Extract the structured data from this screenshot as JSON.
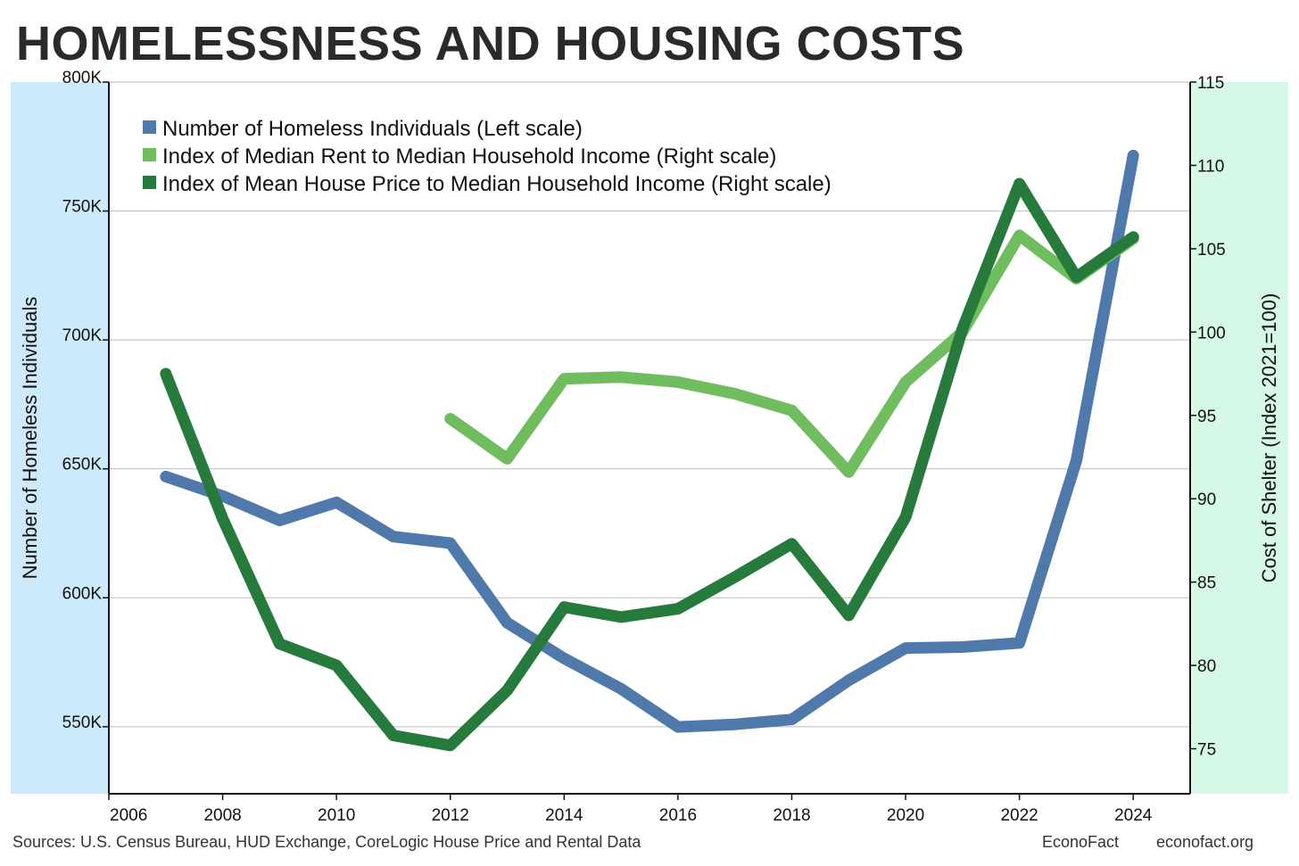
{
  "title": "HOMELESSNESS AND HOUSING COSTS",
  "footer": {
    "sources": "Sources: U.S. Census Bureau, HUD Exchange, CoreLogic House Price and Rental Data",
    "brand": "EconoFact",
    "url": "econofact.org"
  },
  "colors": {
    "homeless": "#4f79ab",
    "rent": "#70bd60",
    "house": "#267a3b",
    "left_panel": "#cdeafd",
    "right_panel": "#d6f8e6",
    "grid": "#bbbbbb"
  },
  "chart_data": {
    "type": "line",
    "title": "HOMELESSNESS AND HOUSING COSTS",
    "ylabel_left": "Number of Homeless Individuals",
    "ylabel_right": "Cost of Shelter (Index 2021=100)",
    "xlim": [
      2006,
      2025
    ],
    "xticks": [
      2006,
      2008,
      2010,
      2012,
      2014,
      2016,
      2018,
      2020,
      2022,
      2024
    ],
    "xtick_labels": [
      "2006",
      "2008",
      "2010",
      "2012",
      "2014",
      "2016",
      "2018",
      "2020",
      "2022",
      "2024"
    ],
    "ylim_left": [
      524000,
      800000
    ],
    "yticks_left": [
      550000,
      600000,
      650000,
      700000,
      750000,
      800000
    ],
    "ytick_labels_left": [
      "550K",
      "600K",
      "650K",
      "700K",
      "750K",
      "800K"
    ],
    "ylim_right": [
      72.3,
      115
    ],
    "yticks_right": [
      75,
      80,
      85,
      90,
      95,
      100,
      105,
      110,
      115
    ],
    "ytick_labels_right": [
      "75",
      "80",
      "85",
      "90",
      "95",
      "100",
      "105",
      "110",
      "115"
    ],
    "grid": true,
    "legend_position": "top-left",
    "series": [
      {
        "name": "Number of Homeless Individuals (Left scale)",
        "axis": "left",
        "color_key": "homeless",
        "x": [
          2007,
          2008,
          2009,
          2010,
          2011,
          2012,
          2013,
          2014,
          2015,
          2016,
          2017,
          2018,
          2019,
          2020,
          2021,
          2022,
          2023,
          2024
        ],
        "values": [
          647000,
          639500,
          630000,
          637000,
          623700,
          621200,
          590300,
          576500,
          564700,
          549900,
          550900,
          552800,
          568000,
          580500,
          580900,
          582500,
          653100,
          771500
        ]
      },
      {
        "name": "Index of Median Rent to Median Household Income (Right scale)",
        "axis": "right",
        "color_key": "rent",
        "x": [
          2012,
          2013,
          2014,
          2015,
          2016,
          2017,
          2018,
          2019,
          2020,
          2021,
          2022,
          2023,
          2024
        ],
        "values": [
          94.8,
          92.4,
          97.2,
          97.3,
          97.0,
          96.3,
          95.3,
          91.6,
          97.0,
          100.0,
          105.8,
          103.2,
          105.6
        ]
      },
      {
        "name": "Index of Mean House Price to Median Household Income (Right scale)",
        "axis": "right",
        "color_key": "house",
        "x": [
          2007,
          2008,
          2009,
          2010,
          2011,
          2012,
          2013,
          2014,
          2015,
          2016,
          2017,
          2018,
          2019,
          2020,
          2021,
          2022,
          2023,
          2024
        ],
        "values": [
          97.5,
          88.8,
          81.3,
          80.0,
          75.8,
          75.2,
          78.5,
          83.5,
          82.9,
          83.4,
          85.3,
          87.3,
          83.0,
          88.9,
          100.2,
          108.9,
          103.3,
          105.7
        ]
      }
    ]
  }
}
